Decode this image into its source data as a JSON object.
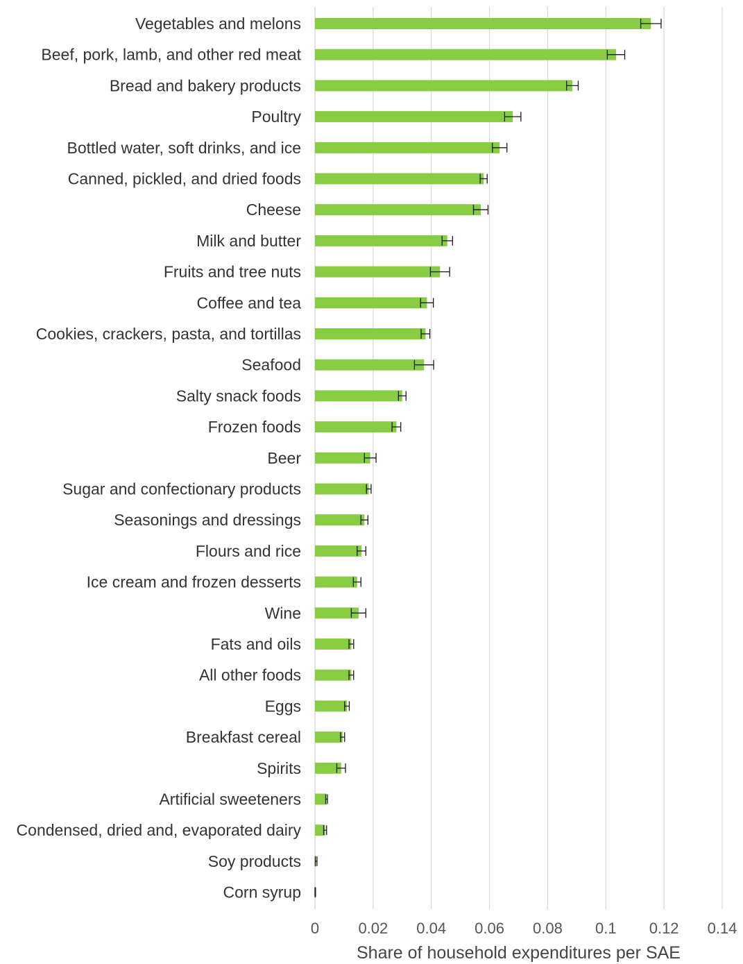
{
  "chart_data": {
    "type": "bar",
    "orientation": "horizontal",
    "categories": [
      "Vegetables and melons",
      "Beef, pork, lamb, and other red meat",
      "Bread and bakery products",
      "Poultry",
      "Bottled water, soft drinks, and ice",
      "Canned, pickled, and dried foods",
      "Cheese",
      "Milk and butter",
      "Fruits and tree nuts",
      "Coffee and tea",
      "Cookies, crackers, pasta, and tortillas",
      "Seafood",
      "Salty snack foods",
      "Frozen foods",
      "Beer",
      "Sugar and confectionary products",
      "Seasonings and dressings",
      "Flours and rice",
      "Ice cream and frozen desserts",
      "Wine",
      "Fats and oils",
      "All other foods",
      "Eggs",
      "Breakfast cereal",
      "Spirits",
      "Artificial sweeteners",
      "Condensed, dried and, evaporated dairy",
      "Soy products",
      "Corn syrup"
    ],
    "values": [
      0.1155,
      0.1035,
      0.0885,
      0.068,
      0.0635,
      0.058,
      0.057,
      0.0455,
      0.043,
      0.0385,
      0.038,
      0.0375,
      0.03,
      0.028,
      0.019,
      0.0185,
      0.017,
      0.016,
      0.0145,
      0.015,
      0.0125,
      0.0125,
      0.011,
      0.0095,
      0.009,
      0.004,
      0.0035,
      0.0004,
      0.0001
    ],
    "error": [
      0.0035,
      0.003,
      0.002,
      0.0028,
      0.0025,
      0.0012,
      0.0025,
      0.0018,
      0.0033,
      0.0022,
      0.0015,
      0.0033,
      0.0013,
      0.0015,
      0.002,
      0.0008,
      0.0012,
      0.0015,
      0.0013,
      0.0025,
      0.0008,
      0.0008,
      0.0008,
      0.0007,
      0.0015,
      0.0003,
      0.0005,
      0.0003,
      0.0001
    ],
    "xlabel": "Share of household expenditures per SAE",
    "xlim": [
      0,
      0.14
    ],
    "xticks": [
      "0",
      "0.02",
      "0.04",
      "0.06",
      "0.08",
      "0.1",
      "0.12",
      "0.14"
    ],
    "grid": "vertical",
    "legend": "none",
    "bar_color": "#88cc44",
    "error_bar_color": "#1a1a1a",
    "grid_color": "#d9d9d9"
  }
}
